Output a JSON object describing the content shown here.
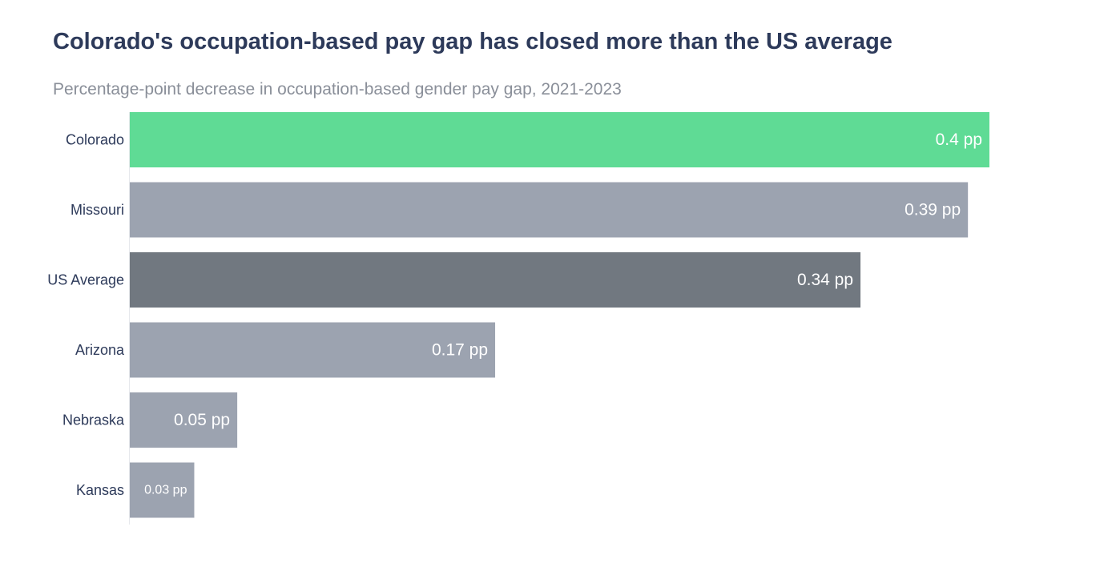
{
  "chart_data": {
    "type": "bar",
    "orientation": "horizontal",
    "title": "Colorado's occupation-based pay gap has closed more than the US average",
    "subtitle": "Percentage-point decrease in occupation-based gender pay gap, 2021-2023",
    "xlabel": "",
    "ylabel": "",
    "categories": [
      "Colorado",
      "Missouri",
      "US Average",
      "Arizona",
      "Nebraska",
      "Kansas"
    ],
    "values": [
      0.4,
      0.39,
      0.34,
      0.17,
      0.05,
      0.03
    ],
    "value_labels": [
      "0.4 pp",
      "0.39 pp",
      "0.34 pp",
      "0.17 pp",
      "0.05 pp",
      "0.03 pp"
    ],
    "colors": [
      "#5fdb95",
      "#9ca3b0",
      "#717880",
      "#9ca3b0",
      "#9ca3b0",
      "#9ca3b0"
    ],
    "xlim": [
      0,
      0.4
    ],
    "grid": false,
    "legend": "none"
  }
}
